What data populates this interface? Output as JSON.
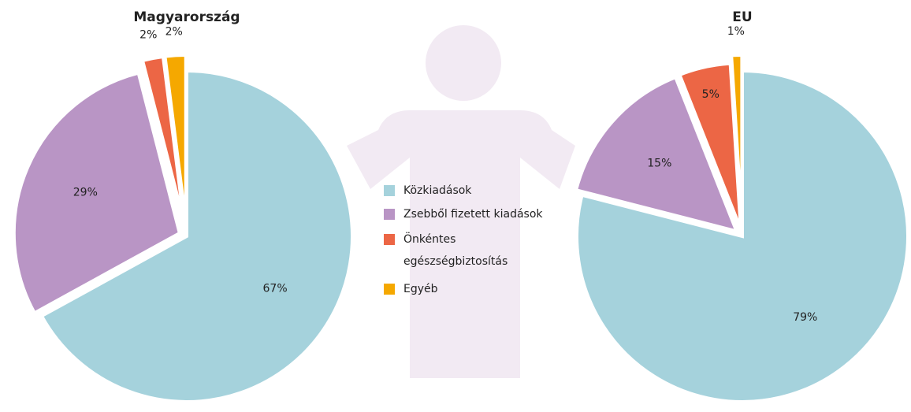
{
  "chart_data": [
    {
      "type": "pie",
      "title": "Magyarország",
      "categories": [
        "Közkiadások",
        "Zsebből fizetett kiadások",
        "Önkéntes egészségbiztosítás",
        "Egyéb"
      ],
      "values": [
        67,
        29,
        2,
        2
      ],
      "value_labels": [
        "67%",
        "29%",
        "2%",
        "2%"
      ],
      "colors": [
        "#a5d2dc",
        "#b995c5",
        "#ec6645",
        "#f5a800"
      ]
    },
    {
      "type": "pie",
      "title": "EU",
      "values": [
        79,
        15,
        5,
        1
      ],
      "value_labels": [
        "79%",
        "15%",
        "5%",
        "1%"
      ]
    }
  ]
}
